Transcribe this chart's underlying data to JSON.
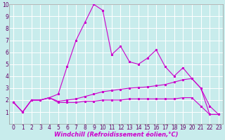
{
  "xlabel": "Windchill (Refroidissement éolien,°C)",
  "bg_color": "#c8ecec",
  "grid_color": "#ffffff",
  "line_color": "#cc00cc",
  "xlim": [
    -0.5,
    23.5
  ],
  "ylim": [
    0,
    10
  ],
  "xticks": [
    0,
    1,
    2,
    3,
    4,
    5,
    6,
    7,
    8,
    9,
    10,
    11,
    12,
    13,
    14,
    15,
    16,
    17,
    18,
    19,
    20,
    21,
    22,
    23
  ],
  "yticks": [
    1,
    2,
    3,
    4,
    5,
    6,
    7,
    8,
    9,
    10
  ],
  "series1_y": [
    1.8,
    1.0,
    2.0,
    2.0,
    2.2,
    2.5,
    4.8,
    7.0,
    8.5,
    10.0,
    9.5,
    5.8,
    6.5,
    5.2,
    5.0,
    5.5,
    6.2,
    4.8,
    4.0,
    4.7,
    3.8,
    3.0,
    0.8,
    0.8
  ],
  "series2_y": [
    1.8,
    1.0,
    2.0,
    2.0,
    2.2,
    1.9,
    2.0,
    2.1,
    2.3,
    2.5,
    2.7,
    2.8,
    2.9,
    3.0,
    3.05,
    3.1,
    3.2,
    3.3,
    3.5,
    3.7,
    3.8,
    3.0,
    1.5,
    0.8
  ],
  "series3_y": [
    1.8,
    1.0,
    2.0,
    2.0,
    2.2,
    1.8,
    1.8,
    1.8,
    1.9,
    1.9,
    2.0,
    2.0,
    2.0,
    2.1,
    2.1,
    2.1,
    2.1,
    2.1,
    2.1,
    2.2,
    2.2,
    1.5,
    0.8,
    0.8
  ],
  "xlabel_fontsize": 6,
  "tick_fontsize": 5.5
}
